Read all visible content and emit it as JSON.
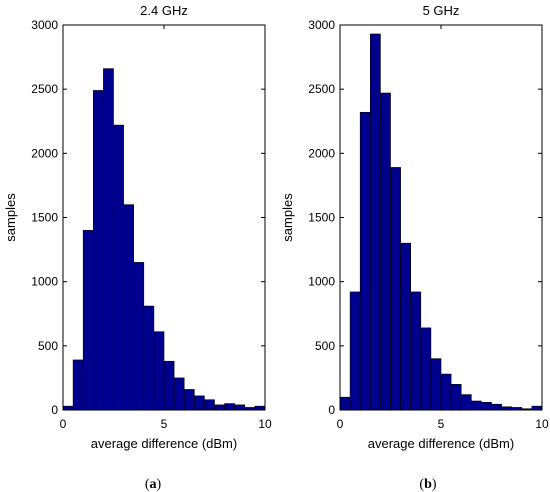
{
  "figure": {
    "captions": [
      {
        "prefix": "(",
        "letter": "a",
        "suffix": ")"
      },
      {
        "prefix": "(",
        "letter": "b",
        "suffix": ")"
      }
    ]
  },
  "chart_data": [
    {
      "type": "bar",
      "title": "2.4 GHz",
      "xlabel": "average difference (dBm)",
      "ylabel": "samples",
      "xlim": [
        0,
        10
      ],
      "ylim": [
        0,
        3000
      ],
      "xticks": [
        0,
        5,
        10
      ],
      "yticks": [
        0,
        500,
        1000,
        1500,
        2000,
        2500,
        3000
      ],
      "bin_width": 0.5,
      "bin_edges_start": [
        0,
        0.5,
        1,
        1.5,
        2,
        2.5,
        3,
        3.5,
        4,
        4.5,
        5,
        5.5,
        6,
        6.5,
        7,
        7.5,
        8,
        8.5,
        9,
        9.5
      ],
      "values": [
        30,
        390,
        1400,
        2490,
        2660,
        2220,
        1600,
        1150,
        810,
        610,
        380,
        250,
        160,
        110,
        80,
        40,
        50,
        40,
        20,
        30
      ],
      "bar_color": "#00008f",
      "grid": false
    },
    {
      "type": "bar",
      "title": "5 GHz",
      "xlabel": "average difference (dBm)",
      "ylabel": "samples",
      "xlim": [
        0,
        10
      ],
      "ylim": [
        0,
        3000
      ],
      "xticks": [
        0,
        5,
        10
      ],
      "yticks": [
        0,
        500,
        1000,
        1500,
        2000,
        2500,
        3000
      ],
      "bin_width": 0.5,
      "bin_edges_start": [
        0,
        0.5,
        1,
        1.5,
        2,
        2.5,
        3,
        3.5,
        4,
        4.5,
        5,
        5.5,
        6,
        6.5,
        7,
        7.5,
        8,
        8.5,
        9,
        9.5
      ],
      "values": [
        100,
        920,
        2320,
        2930,
        2470,
        1890,
        1300,
        920,
        640,
        400,
        280,
        200,
        120,
        70,
        60,
        45,
        25,
        20,
        10,
        30
      ],
      "bar_color": "#00008f",
      "grid": false
    }
  ]
}
